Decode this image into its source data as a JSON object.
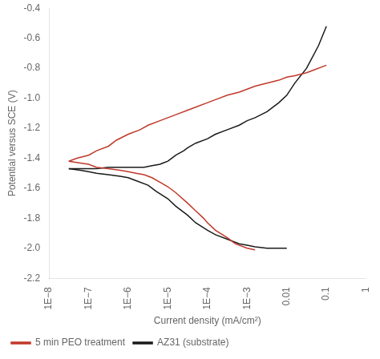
{
  "chart_data": {
    "type": "line",
    "xlabel": "Current density (mA/cm²)",
    "ylabel": "Potential versus SCE (V)",
    "log": "x",
    "xlim": [
      1e-08,
      1
    ],
    "xticks": [
      {
        "value": 1e-08,
        "label": "1E−8"
      },
      {
        "value": 1e-07,
        "label": "1E−7"
      },
      {
        "value": 1e-06,
        "label": "1E−6"
      },
      {
        "value": 1e-05,
        "label": "1E−5"
      },
      {
        "value": 0.0001,
        "label": "1E−4"
      },
      {
        "value": 0.001,
        "label": "1E−3"
      },
      0.01,
      0.1,
      1
    ],
    "ylim": [
      -2.2,
      -0.4
    ],
    "yticks": [
      -2.2,
      {
        "value": -2.0,
        "label": "-2.0"
      },
      -1.8,
      -1.6,
      -1.4,
      -1.2,
      {
        "value": -1.0,
        "label": "-1.0"
      },
      -0.8,
      -0.6,
      -0.4
    ],
    "grid": false,
    "legend": "bottom",
    "series": [
      {
        "name": "5 min PEO treatment",
        "color": "#c0392b",
        "x": [
          3.16227766e-08,
          5.011872336e-08,
          1e-07,
          1.584893192e-07,
          3.16227766e-07,
          5.011872336e-07,
          1e-06,
          1.995262315e-06,
          3.16227766e-06,
          6.309573445e-06,
          1e-05,
          1.584893192e-05,
          3.16227766e-05,
          5.011872336e-05,
          0.0001,
          0.0001584893192,
          0.000316227766,
          0.0006309573445,
          0.001,
          0.001584893192,
          0.00316227766,
          0.006309573445,
          0.01,
          0.01584893192,
          0.0316227766,
          0.05011872336,
          0.1
        ],
        "values": [
          -1.42,
          -1.4,
          -1.38,
          -1.35,
          -1.32,
          -1.28,
          -1.24,
          -1.21,
          -1.18,
          -1.15,
          -1.13,
          -1.11,
          -1.08,
          -1.06,
          -1.03,
          -1.01,
          -0.98,
          -0.96,
          -0.94,
          -0.92,
          -0.9,
          -0.88,
          -0.86,
          -0.85,
          -0.83,
          -0.81,
          -0.78
        ]
      },
      {
        "name": "5 min PEO treatment",
        "color": "#c0392b",
        "x": [
          3.16227766e-08,
          1e-07,
          1.584893192e-07,
          3.16227766e-07,
          6.309573445e-07,
          1e-06,
          1.584893192e-06,
          2.511886432e-06,
          3.981071706e-06,
          6.309573445e-06,
          1e-05,
          1.584893192e-05,
          3.16227766e-05,
          5.011872336e-05,
          7.943282347e-05,
          0.0001,
          0.0001584893192,
          0.000316227766,
          0.0005011872336,
          0.001,
          0.001584893192
        ],
        "values": [
          -1.42,
          -1.44,
          -1.46,
          -1.47,
          -1.48,
          -1.49,
          -1.5,
          -1.51,
          -1.53,
          -1.56,
          -1.59,
          -1.63,
          -1.7,
          -1.75,
          -1.8,
          -1.83,
          -1.88,
          -1.93,
          -1.97,
          -2.0,
          -2.01
        ]
      },
      {
        "name": "AZ31 (substrate)",
        "color": "#1a1a1a",
        "x": [
          3.16227766e-08,
          5.011872336e-08,
          1e-07,
          1.584893192e-07,
          3.16227766e-07,
          5.011872336e-07,
          1e-06,
          1.584893192e-06,
          2.511886432e-06,
          3.981071706e-06,
          6.309573445e-06,
          7.943282347e-06,
          1e-05,
          1.258925412e-05,
          1.584893192e-05,
          2.511886432e-05,
          3.16227766e-05,
          5.011872336e-05,
          0.0001,
          0.0001584893192,
          0.000316227766,
          0.0006309573445,
          0.001,
          0.001584893192,
          0.00316227766,
          0.006309573445,
          0.01,
          0.01584893192,
          0.0316227766,
          0.06309573445,
          0.1
        ],
        "values": [
          -1.47,
          -1.47,
          -1.47,
          -1.47,
          -1.46,
          -1.46,
          -1.46,
          -1.46,
          -1.46,
          -1.45,
          -1.44,
          -1.43,
          -1.42,
          -1.4,
          -1.38,
          -1.35,
          -1.33,
          -1.3,
          -1.27,
          -1.24,
          -1.21,
          -1.18,
          -1.15,
          -1.13,
          -1.09,
          -1.03,
          -0.98,
          -0.9,
          -0.8,
          -0.65,
          -0.52
        ]
      },
      {
        "name": "AZ31 (substrate)",
        "color": "#1a1a1a",
        "x": [
          3.16227766e-08,
          6.309573445e-08,
          1e-07,
          1.584893192e-07,
          3.16227766e-07,
          6.309573445e-07,
          1e-06,
          1.584893192e-06,
          3.16227766e-06,
          5.011872336e-06,
          1e-05,
          1.584893192e-05,
          3.16227766e-05,
          5.011872336e-05,
          0.0001,
          0.0001584893192,
          0.000316227766,
          0.0006309573445,
          0.001,
          0.001584893192,
          0.00316227766,
          0.006309573445,
          0.01
        ],
        "values": [
          -1.47,
          -1.48,
          -1.49,
          -1.5,
          -1.51,
          -1.52,
          -1.53,
          -1.55,
          -1.58,
          -1.62,
          -1.67,
          -1.72,
          -1.78,
          -1.83,
          -1.88,
          -1.91,
          -1.94,
          -1.97,
          -1.98,
          -1.99,
          -2.0,
          -2.0,
          -2.0
        ]
      }
    ]
  }
}
